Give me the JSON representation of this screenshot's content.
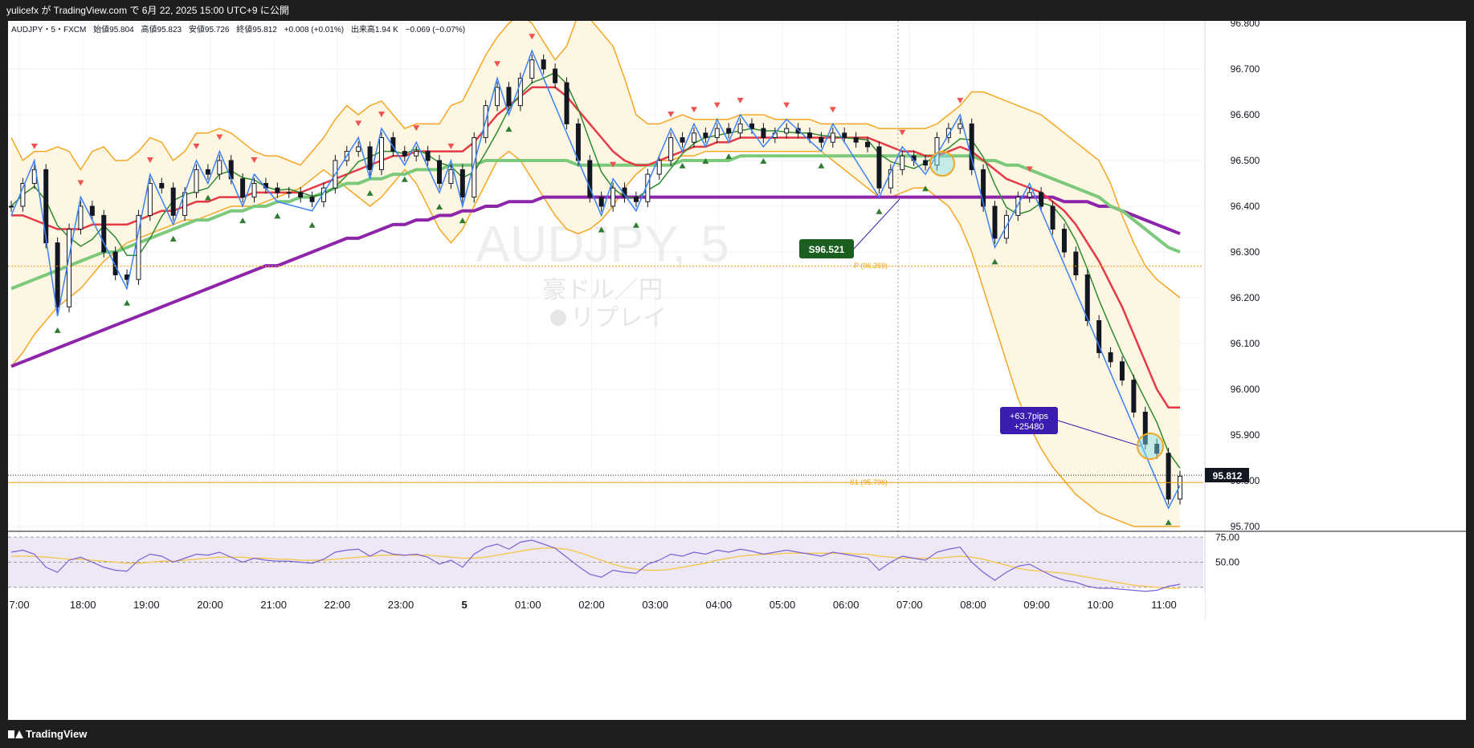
{
  "header": {
    "publish_line": "yulicefx が TradingView.com で 6月 22, 2025 15:00 UTC+9 に公開"
  },
  "legend": {
    "symbol_line": "AUDJPY・5・FXCM",
    "open": "始値95.804",
    "high": "高値95.823",
    "low": "安値95.726",
    "close": "終値95.812",
    "change": "+0.008 (+0.01%)",
    "volume": "出来高1.94 K",
    "volume_change": "−0.069 (−0.07%)"
  },
  "watermark": {
    "symbol": "AUDJPY, 5",
    "name": "豪ドル／円",
    "replay": "リプレイ"
  },
  "labels": {
    "sell_entry": "S96.521",
    "pips": "+63.7pips",
    "profit": "+25480",
    "pivot": "P (96.269)",
    "s1": "S1 (95.796)",
    "last_price": "95.812"
  },
  "footer": {
    "brand": "TradingView"
  },
  "colors": {
    "bb_upper": "#f5a623",
    "bb_fill": "#fdf6e3",
    "ma_fast": "#2e8b2e",
    "ma_red": "#e53946",
    "ma_green": "#7cc97c",
    "ma_purple": "#8e24aa",
    "zigzag": "#3b82f6",
    "up_marker": "#2e7d32",
    "down_marker": "#ef5350",
    "sell_label": "#1b5e20",
    "pips_label": "#3a1db0",
    "rsi_line": "#7b61d6",
    "rsi_ma": "#f5c542",
    "rsi_bg": "#ede7f6"
  },
  "chart_data": [
    {
      "type": "line",
      "title": "AUDJPY・5・FXCM",
      "x_ticks": [
        "7:00",
        "18:00",
        "19:00",
        "20:00",
        "21:00",
        "22:00",
        "23:00",
        "5",
        "01:00",
        "02:00",
        "03:00",
        "04:00",
        "05:00",
        "06:00",
        "07:00",
        "08:00",
        "09:00",
        "10:00",
        "11:00"
      ],
      "y_ticks": [
        "96.800",
        "96.700",
        "96.600",
        "96.500",
        "96.400",
        "96.300",
        "96.200",
        "96.100",
        "96.000",
        "95.900",
        "95.800",
        "95.700"
      ],
      "ylim": [
        95.7,
        96.8
      ],
      "last_price": 95.812,
      "pivot_P": 96.269,
      "pivot_S1": 95.796,
      "sell_entry": 96.521,
      "result_pips": "+63.7pips",
      "series": [
        {
          "name": "",
          "kind": "close",
          "values": [
            96.4,
            96.45,
            96.48,
            96.32,
            96.18,
            96.35,
            96.4,
            96.38,
            96.3,
            96.25,
            96.24,
            96.38,
            96.45,
            96.44,
            96.38,
            96.43,
            96.48,
            96.47,
            96.5,
            96.46,
            96.42,
            96.45,
            96.44,
            96.43,
            96.43,
            96.42,
            96.41,
            96.44,
            96.5,
            96.52,
            96.53,
            96.48,
            96.55,
            96.52,
            96.51,
            96.52,
            96.5,
            96.45,
            96.48,
            96.42,
            96.55,
            96.62,
            96.66,
            96.62,
            96.68,
            96.72,
            96.7,
            96.67,
            96.58,
            96.5,
            96.42,
            96.4,
            96.44,
            96.42,
            96.41,
            96.47,
            96.5,
            96.55,
            96.54,
            96.56,
            96.55,
            96.57,
            96.56,
            96.58,
            96.57,
            96.55,
            96.56,
            96.57,
            96.56,
            96.55,
            96.54,
            96.56,
            96.55,
            96.54,
            96.53,
            96.44,
            96.48,
            96.51,
            96.5,
            96.49,
            96.55,
            96.57,
            96.58,
            96.48,
            96.4,
            96.33,
            96.38,
            96.42,
            96.43,
            96.4,
            96.35,
            96.3,
            96.25,
            96.15,
            96.08,
            96.06,
            96.02,
            95.95,
            95.88,
            95.86,
            95.76,
            95.81
          ]
        },
        {
          "name": "",
          "kind": "bb_upper",
          "values": [
            96.55,
            96.5,
            96.52,
            96.52,
            96.53,
            96.52,
            96.48,
            96.52,
            96.53,
            96.5,
            96.5,
            96.52,
            96.55,
            96.54,
            96.5,
            96.52,
            96.56,
            96.56,
            96.57,
            96.56,
            96.54,
            96.52,
            96.51,
            96.51,
            96.5,
            96.49,
            96.52,
            96.55,
            96.59,
            96.62,
            96.6,
            96.62,
            96.63,
            96.6,
            96.57,
            96.58,
            96.58,
            96.58,
            96.62,
            96.63,
            96.68,
            96.73,
            96.77,
            96.8,
            96.82,
            96.8,
            96.76,
            96.72,
            96.75,
            96.82,
            96.81,
            96.78,
            96.75,
            96.68,
            96.6,
            96.58,
            96.58,
            96.59,
            96.6,
            96.59,
            96.59,
            96.59,
            96.59,
            96.6,
            96.6,
            96.6,
            96.59,
            96.59,
            96.59,
            96.59,
            96.58,
            96.58,
            96.58,
            96.58,
            96.58,
            96.57,
            96.57,
            96.57,
            96.57,
            96.57,
            96.58,
            96.6,
            96.62,
            96.65,
            96.65,
            96.64,
            96.63,
            96.62,
            96.61,
            96.6,
            96.58,
            96.56,
            96.54,
            96.52,
            96.5,
            96.45,
            96.38,
            96.32,
            96.27,
            96.24,
            96.22,
            96.2
          ]
        },
        {
          "name": "",
          "kind": "bb_lower",
          "values": [
            96.05,
            96.08,
            96.12,
            96.15,
            96.18,
            96.2,
            96.22,
            96.25,
            96.28,
            96.3,
            96.32,
            96.33,
            96.34,
            96.35,
            96.36,
            96.37,
            96.37,
            96.38,
            96.39,
            96.4,
            96.4,
            96.4,
            96.41,
            96.42,
            96.43,
            96.44,
            96.46,
            96.48,
            96.46,
            96.44,
            96.42,
            96.4,
            96.42,
            96.45,
            96.48,
            96.45,
            96.4,
            96.35,
            96.32,
            96.35,
            96.4,
            96.45,
            96.5,
            96.52,
            96.5,
            96.46,
            96.42,
            96.38,
            96.35,
            96.34,
            96.35,
            96.37,
            96.4,
            96.44,
            96.47,
            96.49,
            96.5,
            96.5,
            96.51,
            96.51,
            96.52,
            96.52,
            96.52,
            96.52,
            96.52,
            96.52,
            96.52,
            96.52,
            96.52,
            96.52,
            96.52,
            96.5,
            96.48,
            96.46,
            96.44,
            96.42,
            96.42,
            96.43,
            96.44,
            96.44,
            96.42,
            96.4,
            96.36,
            96.3,
            96.22,
            96.14,
            96.06,
            95.98,
            95.92,
            95.87,
            95.83,
            95.8,
            95.77,
            95.75,
            95.73,
            95.72,
            95.71,
            95.7,
            95.7,
            95.7,
            95.7,
            95.7
          ]
        },
        {
          "name": "",
          "kind": "ma_red",
          "values": [
            96.38,
            96.38,
            96.37,
            96.36,
            96.35,
            96.35,
            96.35,
            96.36,
            96.36,
            96.36,
            96.36,
            96.37,
            96.38,
            96.39,
            96.39,
            96.4,
            96.41,
            96.41,
            96.42,
            96.42,
            96.42,
            96.43,
            96.43,
            96.43,
            96.43,
            96.43,
            96.44,
            96.45,
            96.46,
            96.47,
            96.48,
            96.49,
            96.5,
            96.51,
            96.51,
            96.52,
            96.52,
            96.52,
            96.52,
            96.52,
            96.54,
            96.57,
            96.6,
            96.62,
            96.64,
            96.66,
            96.66,
            96.66,
            96.64,
            96.61,
            96.58,
            96.55,
            96.52,
            96.5,
            96.49,
            96.49,
            96.5,
            96.51,
            96.52,
            96.53,
            96.53,
            96.54,
            96.54,
            96.55,
            96.55,
            96.55,
            96.55,
            96.55,
            96.55,
            96.55,
            96.55,
            96.55,
            96.55,
            96.55,
            96.55,
            96.54,
            96.53,
            96.52,
            96.52,
            96.51,
            96.51,
            96.52,
            96.53,
            96.52,
            96.5,
            96.48,
            96.46,
            96.45,
            96.44,
            96.43,
            96.41,
            96.39,
            96.36,
            96.32,
            96.28,
            96.23,
            96.18,
            96.12,
            96.06,
            96.0,
            95.96,
            95.96
          ]
        },
        {
          "name": "",
          "kind": "ma_green",
          "values": [
            96.22,
            96.23,
            96.24,
            96.25,
            96.26,
            96.27,
            96.28,
            96.29,
            96.3,
            96.3,
            96.31,
            96.32,
            96.33,
            96.34,
            96.35,
            96.36,
            96.37,
            96.37,
            96.38,
            96.39,
            96.39,
            96.4,
            96.4,
            96.41,
            96.41,
            96.42,
            96.42,
            96.43,
            96.44,
            96.45,
            96.45,
            96.46,
            96.46,
            96.47,
            96.47,
            96.48,
            96.48,
            96.48,
            96.49,
            96.49,
            96.49,
            96.5,
            96.5,
            96.5,
            96.5,
            96.5,
            96.5,
            96.5,
            96.5,
            96.49,
            96.49,
            96.49,
            96.49,
            96.49,
            96.49,
            96.49,
            96.49,
            96.49,
            96.5,
            96.5,
            96.5,
            96.5,
            96.5,
            96.51,
            96.51,
            96.51,
            96.51,
            96.51,
            96.51,
            96.51,
            96.51,
            96.51,
            96.51,
            96.51,
            96.51,
            96.51,
            96.51,
            96.51,
            96.51,
            96.51,
            96.51,
            96.51,
            96.51,
            96.51,
            96.5,
            96.5,
            96.49,
            96.49,
            96.48,
            96.47,
            96.46,
            96.45,
            96.44,
            96.43,
            96.42,
            96.4,
            96.39,
            96.37,
            96.35,
            96.33,
            96.31,
            96.3
          ]
        },
        {
          "name": "",
          "kind": "ma_purple",
          "values": [
            96.05,
            96.06,
            96.07,
            96.08,
            96.09,
            96.1,
            96.11,
            96.12,
            96.13,
            96.14,
            96.15,
            96.16,
            96.17,
            96.18,
            96.19,
            96.2,
            96.21,
            96.22,
            96.23,
            96.24,
            96.25,
            96.26,
            96.27,
            96.27,
            96.28,
            96.29,
            96.3,
            96.31,
            96.32,
            96.33,
            96.33,
            96.34,
            96.35,
            96.36,
            96.36,
            96.37,
            96.37,
            96.38,
            96.38,
            96.39,
            96.39,
            96.4,
            96.4,
            96.41,
            96.41,
            96.41,
            96.42,
            96.42,
            96.42,
            96.42,
            96.42,
            96.42,
            96.42,
            96.42,
            96.42,
            96.42,
            96.42,
            96.42,
            96.42,
            96.42,
            96.42,
            96.42,
            96.42,
            96.42,
            96.42,
            96.42,
            96.42,
            96.42,
            96.42,
            96.42,
            96.42,
            96.42,
            96.42,
            96.42,
            96.42,
            96.42,
            96.42,
            96.42,
            96.42,
            96.42,
            96.42,
            96.42,
            96.42,
            96.42,
            96.42,
            96.42,
            96.42,
            96.42,
            96.42,
            96.42,
            96.42,
            96.41,
            96.41,
            96.41,
            96.4,
            96.4,
            96.39,
            96.38,
            96.37,
            96.36,
            96.35,
            96.34
          ]
        }
      ]
    },
    {
      "type": "line",
      "title": "RSI",
      "y_ticks": [
        "75.00",
        "50.00"
      ],
      "ylim": [
        20,
        80
      ],
      "series": [
        {
          "name": "",
          "kind": "rsi",
          "values": [
            60,
            62,
            58,
            45,
            40,
            52,
            55,
            50,
            45,
            42,
            41,
            52,
            58,
            56,
            50,
            54,
            58,
            57,
            60,
            55,
            50,
            54,
            52,
            51,
            51,
            50,
            49,
            53,
            60,
            62,
            63,
            56,
            62,
            58,
            57,
            58,
            55,
            48,
            52,
            45,
            58,
            65,
            68,
            63,
            70,
            72,
            68,
            64,
            55,
            46,
            38,
            35,
            42,
            40,
            39,
            48,
            52,
            58,
            56,
            60,
            58,
            62,
            60,
            63,
            61,
            58,
            60,
            62,
            60,
            58,
            56,
            60,
            58,
            56,
            54,
            42,
            50,
            56,
            54,
            52,
            60,
            63,
            65,
            50,
            40,
            32,
            40,
            46,
            48,
            42,
            36,
            32,
            30,
            26,
            24,
            24,
            23,
            22,
            21,
            22,
            26,
            28
          ]
        },
        {
          "name": "",
          "kind": "rsi_ma",
          "values": [
            56,
            56,
            56,
            55,
            54,
            53,
            53,
            52,
            51,
            50,
            49,
            49,
            50,
            51,
            51,
            52,
            53,
            54,
            55,
            55,
            55,
            54,
            54,
            53,
            53,
            52,
            52,
            52,
            53,
            54,
            55,
            56,
            57,
            57,
            57,
            57,
            57,
            56,
            55,
            54,
            54,
            55,
            57,
            59,
            61,
            63,
            64,
            64,
            63,
            60,
            56,
            52,
            48,
            45,
            43,
            42,
            42,
            43,
            45,
            47,
            49,
            52,
            54,
            56,
            57,
            58,
            58,
            59,
            59,
            59,
            59,
            59,
            59,
            58,
            58,
            56,
            55,
            54,
            54,
            54,
            54,
            55,
            56,
            55,
            53,
            50,
            47,
            44,
            42,
            41,
            40,
            39,
            37,
            35,
            33,
            31,
            29,
            27,
            26,
            25,
            24,
            24
          ]
        }
      ]
    }
  ]
}
